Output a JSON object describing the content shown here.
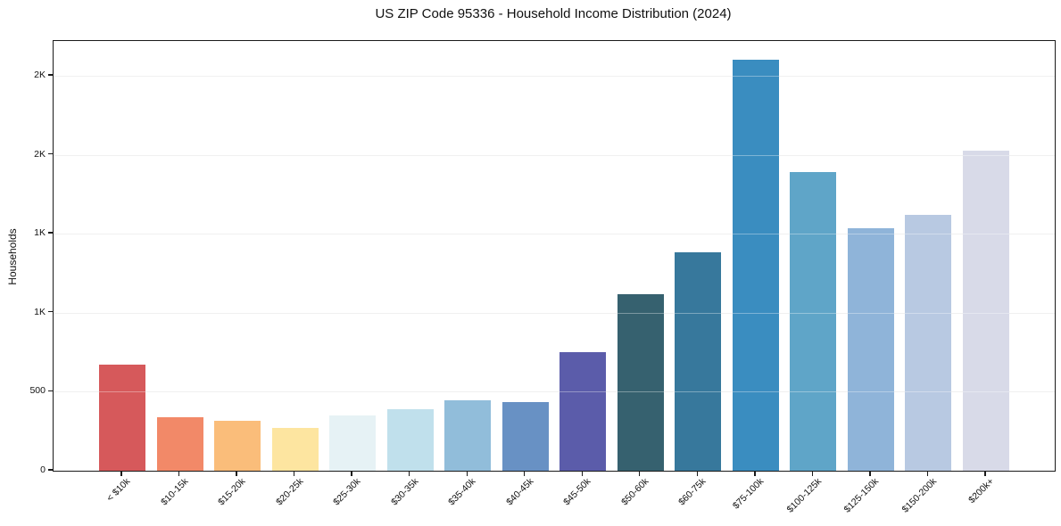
{
  "chart_data": {
    "type": "bar",
    "title": "US ZIP Code 95336 - Household Income Distribution (2024)",
    "xlabel": "",
    "ylabel": "Households",
    "categories": [
      "< $10k",
      "$10-15k",
      "$15-20k",
      "$20-25k",
      "$25-30k",
      "$30-35k",
      "$35-40k",
      "$40-45k",
      "$45-50k",
      "$50-60k",
      "$60-75k",
      "$75-100k",
      "$100-125k",
      "$125-150k",
      "$150-200k",
      "$200k+"
    ],
    "values": [
      670,
      340,
      315,
      270,
      350,
      390,
      445,
      435,
      750,
      1115,
      1380,
      2600,
      1890,
      1535,
      1620,
      2025
    ],
    "bar_colors": [
      "#d6595b",
      "#f28968",
      "#fabd7a",
      "#fde5a0",
      "#e6f2f5",
      "#c0e0ec",
      "#91bdda",
      "#6891c4",
      "#5b5caa",
      "#36616f",
      "#37789c",
      "#3a8dc0",
      "#5fa5c8",
      "#8fb4d9",
      "#b8c9e2",
      "#d8dae8"
    ],
    "ylim": [
      0,
      2720
    ],
    "yticks": [
      {
        "value": 0,
        "label": "0"
      },
      {
        "value": 500,
        "label": "500"
      },
      {
        "value": 1000,
        "label": "1K"
      },
      {
        "value": 1500,
        "label": "1K"
      },
      {
        "value": 2000,
        "label": "2K"
      },
      {
        "value": 2500,
        "label": "2K"
      }
    ],
    "grid": "horizontal",
    "legend": "none",
    "styles": {
      "spine_color": "#1a1a1a",
      "grid_color": "#e9e9e9",
      "text_color": "#111111",
      "background": "#ffffff"
    }
  }
}
